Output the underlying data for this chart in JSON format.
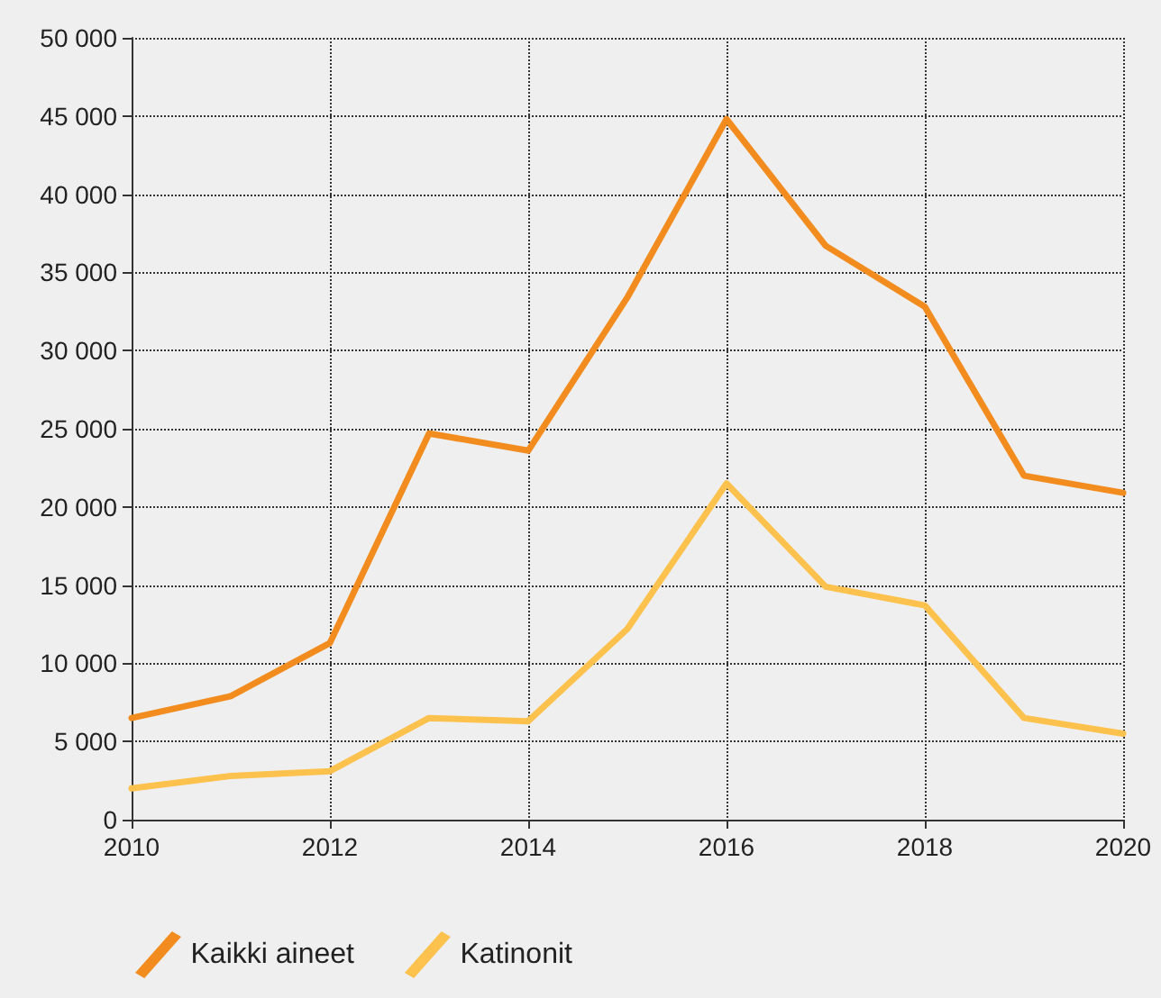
{
  "chart_data": {
    "type": "line",
    "x": [
      2010,
      2011,
      2012,
      2013,
      2014,
      2015,
      2016,
      2017,
      2018,
      2019,
      2020
    ],
    "series": [
      {
        "name": "Kaikki aineet",
        "color": "#f28c1e",
        "values": [
          6500,
          7900,
          11300,
          24700,
          23600,
          33400,
          44800,
          36700,
          32800,
          22000,
          20900
        ]
      },
      {
        "name": "Katinonit",
        "color": "#fdc24e",
        "values": [
          2000,
          2800,
          3100,
          6500,
          6300,
          12200,
          21500,
          14900,
          13700,
          6500,
          5500
        ]
      }
    ],
    "xlim": [
      2010,
      2020
    ],
    "xticks": [
      2010,
      2012,
      2014,
      2016,
      2018,
      2020
    ],
    "ylim": [
      0,
      50000
    ],
    "yticks": [
      0,
      {
        "value": 5000,
        "label": "5 000"
      },
      {
        "value": 10000,
        "label": "10 000"
      },
      {
        "value": 15000,
        "label": "15 000"
      },
      {
        "value": 20000,
        "label": "20 000"
      },
      {
        "value": 25000,
        "label": "25 000"
      },
      {
        "value": 30000,
        "label": "30 000"
      },
      {
        "value": 35000,
        "label": "35 000"
      },
      {
        "value": 40000,
        "label": "40 000"
      },
      {
        "value": 45000,
        "label": "45 000"
      },
      {
        "value": 50000,
        "label": "50 000"
      }
    ],
    "grid": true,
    "legend": "bottom left",
    "marker": "none",
    "line_style": "solid"
  }
}
